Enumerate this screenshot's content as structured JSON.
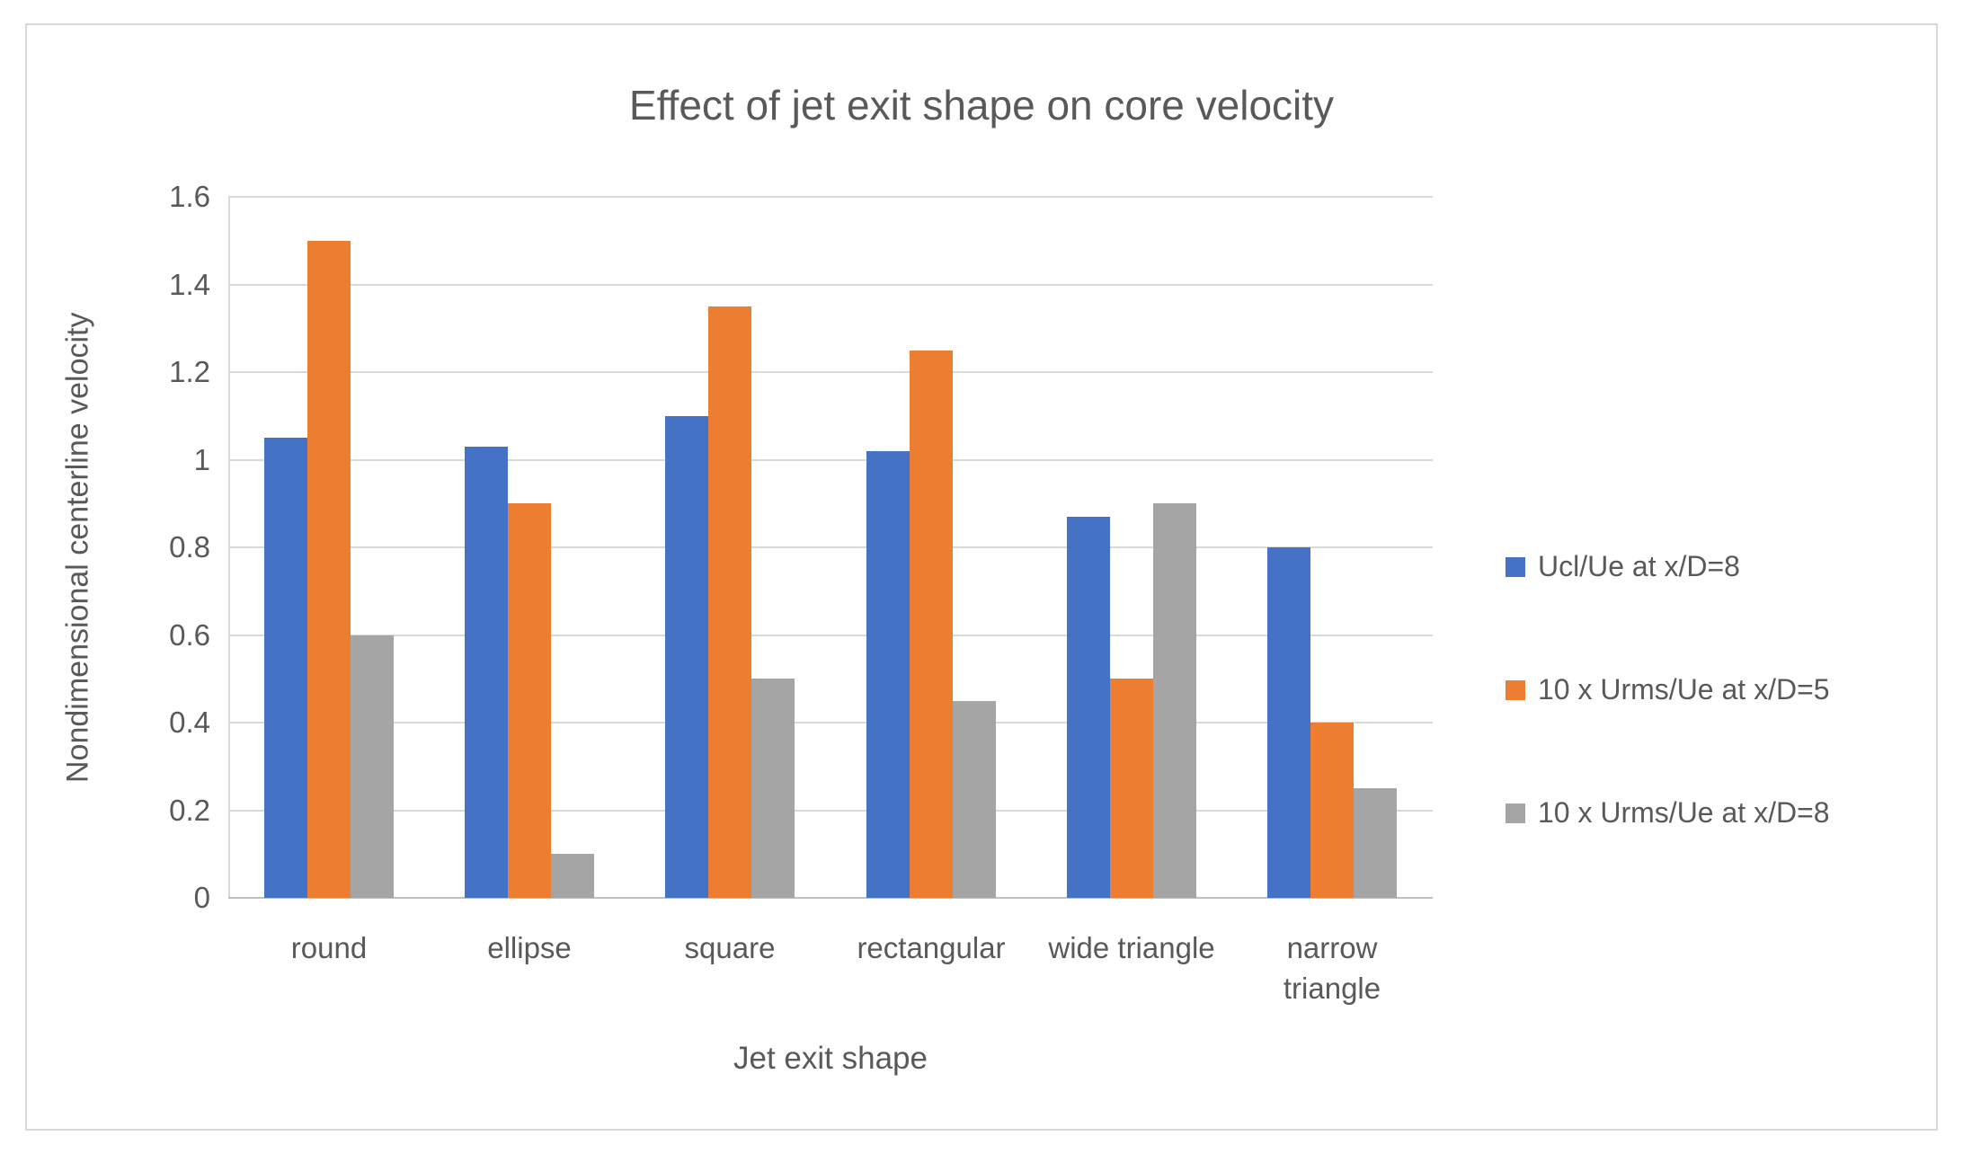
{
  "chart_data": {
    "type": "bar",
    "title": "Effect of jet exit shape on core velocity",
    "xlabel": "Jet exit shape",
    "ylabel": "Nondimensional centerline velocity",
    "categories": [
      "round",
      "ellipse",
      "square",
      "rectangular",
      "wide triangle",
      "narrow triangle"
    ],
    "series": [
      {
        "name": "Ucl/Ue at x/D=8",
        "color": "#4472C4",
        "values": [
          1.05,
          1.03,
          1.1,
          1.02,
          0.87,
          0.8
        ]
      },
      {
        "name": "10 x Urms/Ue at x/D=5",
        "color": "#ED7D31",
        "values": [
          1.5,
          0.9,
          1.35,
          1.25,
          0.5,
          0.4
        ]
      },
      {
        "name": "10 x Urms/Ue at x/D=8",
        "color": "#A5A5A5",
        "values": [
          0.6,
          0.1,
          0.5,
          0.45,
          0.9,
          0.25
        ]
      }
    ],
    "ylim": [
      0,
      1.6
    ],
    "yticks": [
      {
        "v": 0,
        "label": "0"
      },
      {
        "v": 0.2,
        "label": "0.2"
      },
      {
        "v": 0.4,
        "label": "0.4"
      },
      {
        "v": 0.6,
        "label": "0.6"
      },
      {
        "v": 0.8,
        "label": "0.8"
      },
      {
        "v": 1,
        "label": "1"
      },
      {
        "v": 1.2,
        "label": "1.2"
      },
      {
        "v": 1.4,
        "label": "1.4"
      },
      {
        "v": 1.6,
        "label": "1.6"
      }
    ],
    "grid": true,
    "legend_position": "right",
    "style": {
      "text_color": "#595959",
      "grid_color": "#D9D9D9",
      "axis_color": "#BFBFBF",
      "border_color": "#D9D9D9"
    }
  }
}
